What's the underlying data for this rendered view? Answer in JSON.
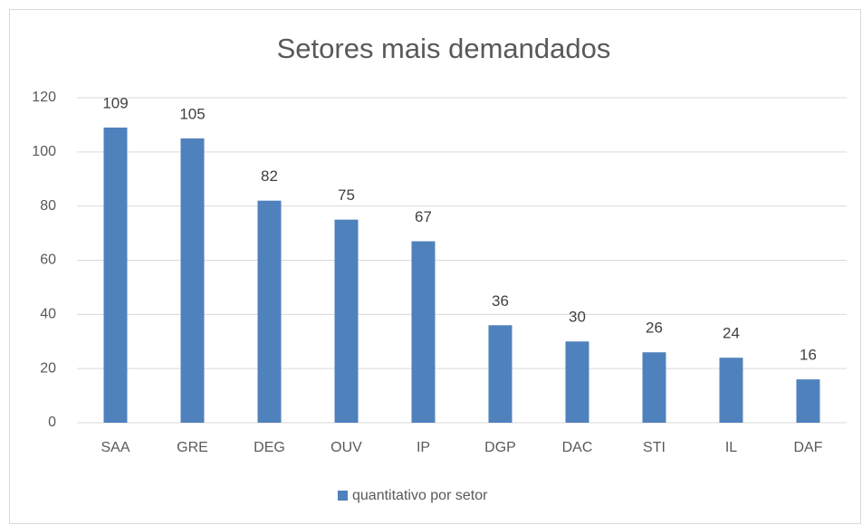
{
  "chart_data": {
    "type": "bar",
    "title": "Setores mais demandados",
    "categories": [
      "SAA",
      "GRE",
      "DEG",
      "OUV",
      "IP",
      "DGP",
      "DAC",
      "STI",
      "IL",
      "DAF"
    ],
    "series": [
      {
        "name": "quantitativo por setor",
        "color": "#4f81bd",
        "values": [
          109,
          105,
          82,
          75,
          67,
          36,
          30,
          26,
          24,
          16
        ]
      }
    ],
    "ylim": [
      0,
      120
    ],
    "yticks": [
      0,
      20,
      40,
      60,
      80,
      100,
      120
    ],
    "grid": true,
    "legend": "bottom"
  }
}
